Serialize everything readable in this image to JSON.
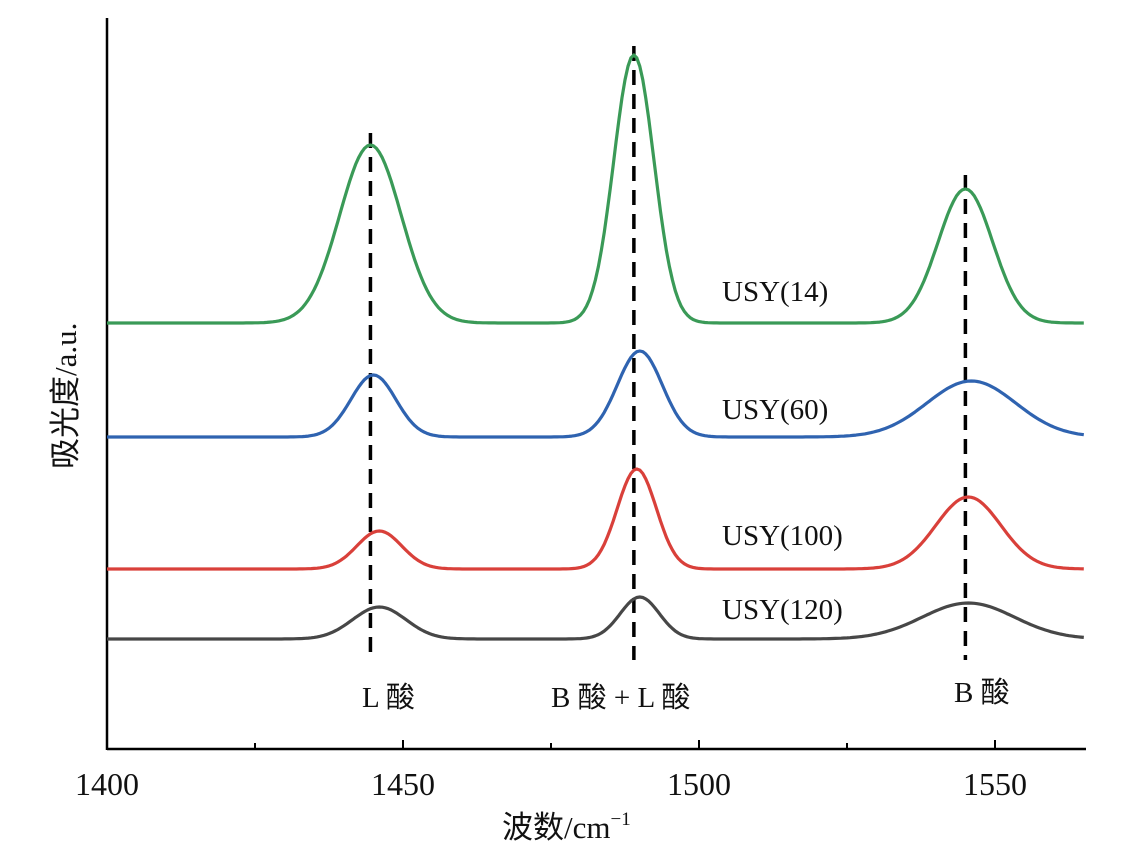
{
  "chart_data": {
    "type": "line",
    "xlabel": "波数/cm",
    "xlabel_sup": "−1",
    "ylabel": "吸光度/a.u.",
    "xlim": [
      1400,
      1565
    ],
    "x_ticks": [
      1400,
      1450,
      1500,
      1550
    ],
    "y_ticks": [],
    "grid": false,
    "legend": "none",
    "series": [
      {
        "name": "USY(14)",
        "color": "#3a9a57",
        "baseline": 0.0,
        "peaks": [
          {
            "center": 1444.5,
            "height": 1.78,
            "width": 5.2
          },
          {
            "center": 1489.0,
            "height": 2.68,
            "width": 3.4
          },
          {
            "center": 1545.0,
            "height": 1.34,
            "width": 4.6
          }
        ]
      },
      {
        "name": "USY(60)",
        "color": "#2f63b0",
        "baseline": 0.0,
        "peaks": [
          {
            "center": 1445.0,
            "height": 0.62,
            "width": 3.8
          },
          {
            "center": 1490.0,
            "height": 0.86,
            "width": 3.8
          },
          {
            "center": 1546.0,
            "height": 0.56,
            "width": 7.5
          }
        ]
      },
      {
        "name": "USY(100)",
        "color": "#d9403a",
        "baseline": 0.0,
        "peaks": [
          {
            "center": 1446.0,
            "height": 0.38,
            "width": 3.8
          },
          {
            "center": 1489.5,
            "height": 1.0,
            "width": 3.3
          },
          {
            "center": 1545.5,
            "height": 0.72,
            "width": 5.5
          }
        ]
      },
      {
        "name": "USY(120)",
        "color": "#474747",
        "baseline": 0.0,
        "peaks": [
          {
            "center": 1446.0,
            "height": 0.32,
            "width": 4.5
          },
          {
            "center": 1490.0,
            "height": 0.42,
            "width": 3.3
          },
          {
            "center": 1545.5,
            "height": 0.36,
            "width": 7.8
          }
        ]
      }
    ],
    "reference_lines": [
      {
        "x": 1444.5,
        "label": "L 酸"
      },
      {
        "x": 1489.0,
        "label": "B 酸 + L 酸"
      },
      {
        "x": 1545.0,
        "label": "B 酸"
      }
    ]
  }
}
